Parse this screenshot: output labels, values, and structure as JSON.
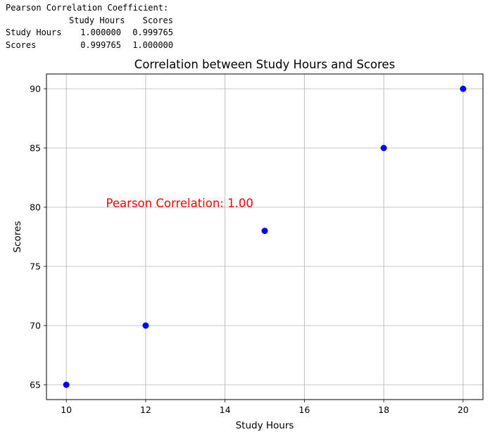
{
  "console": {
    "heading": "Pearson Correlation Coefficient:",
    "columns": [
      "Study Hours",
      "Scores"
    ],
    "rows": [
      {
        "label": "Study Hours",
        "values": [
          "1.000000",
          "0.999765"
        ]
      },
      {
        "label": "Scores",
        "values": [
          "0.999765",
          "1.000000"
        ]
      }
    ]
  },
  "chart_data": {
    "type": "scatter",
    "title": "Correlation between Study Hours and Scores",
    "xlabel": "Study Hours",
    "ylabel": "Scores",
    "x": [
      10,
      12,
      15,
      18,
      20
    ],
    "y": [
      65,
      70,
      78,
      85,
      90
    ],
    "xlim": [
      9.5,
      20.5
    ],
    "ylim": [
      63.75,
      91.25
    ],
    "xticks": [
      10,
      12,
      14,
      16,
      18,
      20
    ],
    "yticks": [
      65,
      70,
      75,
      80,
      85,
      90
    ],
    "grid": true,
    "marker_color": "#0000ff",
    "annotation": {
      "text": "Pearson Correlation: 1.00",
      "x": 11,
      "y": 80,
      "color": "#ff0000"
    }
  }
}
